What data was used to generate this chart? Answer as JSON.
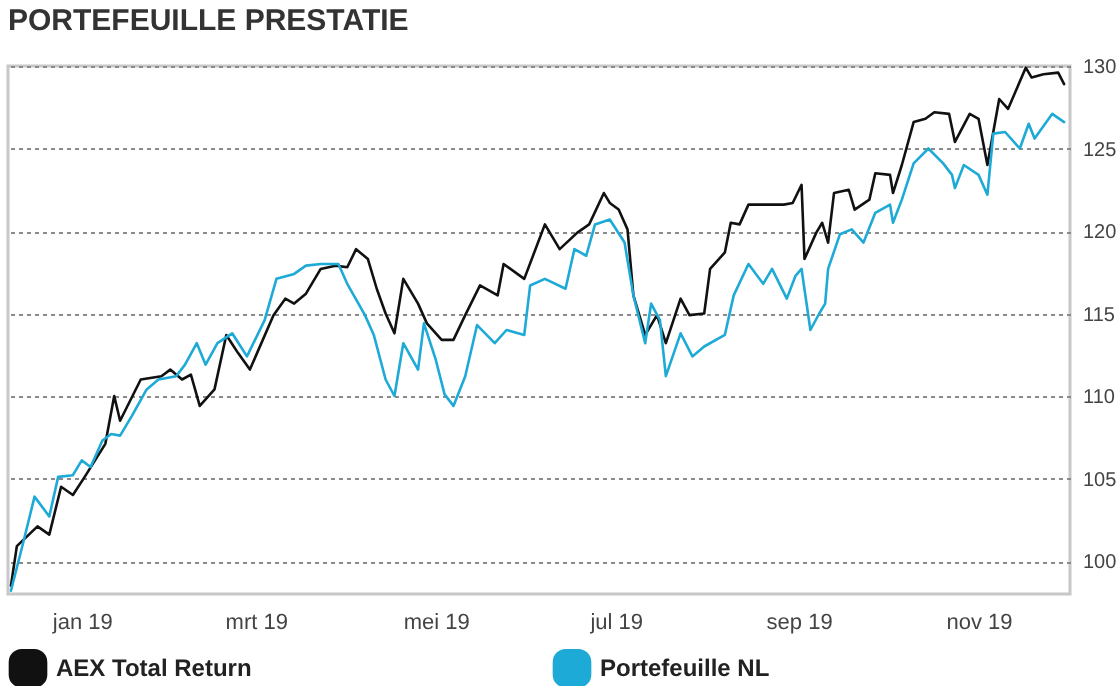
{
  "chart_data": {
    "type": "line",
    "title": "PORTEFEUILLE PRESTATIE",
    "xlim": [
      "2018-12-07",
      "2019-12-02"
    ],
    "ylim": [
      98,
      130
    ],
    "xticks": [
      {
        "value": "2019-01-01",
        "label": "jan 19"
      },
      {
        "value": "2019-03-01",
        "label": "mrt 19"
      },
      {
        "value": "2019-05-01",
        "label": "mei 19"
      },
      {
        "value": "2019-07-01",
        "label": "jul 19"
      },
      {
        "value": "2019-09-01",
        "label": "sep 19"
      },
      {
        "value": "2019-11-01",
        "label": "nov 19"
      }
    ],
    "yticks": [
      100,
      105,
      110,
      115,
      120,
      125,
      130
    ],
    "grid": "y",
    "legend": "bottom",
    "line_style": "solid",
    "marker": "none",
    "series": [
      {
        "name": "AEX Total Return",
        "color": "#111111",
        "x": [
          "2018-12-08",
          "2018-12-10",
          "2018-12-17",
          "2018-12-21",
          "2018-12-25",
          "2018-12-29",
          "2019-01-02",
          "2019-01-09",
          "2019-01-12",
          "2019-01-14",
          "2019-01-21",
          "2019-01-28",
          "2019-01-31",
          "2019-02-04",
          "2019-02-07",
          "2019-02-10",
          "2019-02-15",
          "2019-02-19",
          "2019-02-23",
          "2019-02-27",
          "2019-03-07",
          "2019-03-11",
          "2019-03-14",
          "2019-03-18",
          "2019-03-23",
          "2019-03-28",
          "2019-04-01",
          "2019-04-04",
          "2019-04-08",
          "2019-04-11",
          "2019-04-14",
          "2019-04-17",
          "2019-04-20",
          "2019-04-25",
          "2019-04-28",
          "2019-05-03",
          "2019-05-07",
          "2019-05-11",
          "2019-05-16",
          "2019-05-22",
          "2019-05-24",
          "2019-05-31",
          "2019-06-07",
          "2019-06-12",
          "2019-06-18",
          "2019-06-22",
          "2019-06-27",
          "2019-06-29",
          "2019-07-02",
          "2019-07-05",
          "2019-07-07",
          "2019-07-11",
          "2019-07-15",
          "2019-07-18",
          "2019-07-23",
          "2019-07-26",
          "2019-07-31",
          "2019-08-02",
          "2019-08-07",
          "2019-08-09",
          "2019-08-12",
          "2019-08-15",
          "2019-08-27",
          "2019-08-30",
          "2019-09-02",
          "2019-09-03",
          "2019-09-07",
          "2019-09-09",
          "2019-09-11",
          "2019-09-13",
          "2019-09-18",
          "2019-09-20",
          "2019-09-25",
          "2019-09-27",
          "2019-10-02",
          "2019-10-03",
          "2019-10-06",
          "2019-10-10",
          "2019-10-14",
          "2019-10-17",
          "2019-10-22",
          "2019-10-24",
          "2019-10-29",
          "2019-11-01",
          "2019-11-04",
          "2019-11-08",
          "2019-11-11",
          "2019-11-17",
          "2019-11-19",
          "2019-11-23",
          "2019-11-28",
          "2019-11-30"
        ],
        "values": [
          98.5,
          100.9,
          102.1,
          101.6,
          104.5,
          104,
          105.1,
          107.1,
          110,
          108.5,
          111,
          111.2,
          111.6,
          111,
          111.3,
          109.4,
          110.4,
          113.7,
          112.6,
          111.6,
          114.9,
          115.9,
          115.6,
          116.2,
          117.7,
          117.9,
          117.8,
          118.9,
          118.3,
          116.5,
          115,
          113.8,
          117.1,
          115.6,
          114.4,
          113.4,
          113.4,
          114.9,
          116.7,
          116.1,
          118,
          117.1,
          120.4,
          118.9,
          119.9,
          120.4,
          122.3,
          121.7,
          121.3,
          120.1,
          116.1,
          113.7,
          114.9,
          113.2,
          115.9,
          114.9,
          115,
          117.7,
          118.7,
          120.5,
          120.4,
          121.6,
          121.6,
          121.7,
          122.8,
          118.3,
          119.9,
          120.5,
          119.3,
          122.3,
          122.5,
          121.3,
          121.9,
          123.5,
          123.4,
          122.3,
          124,
          126.6,
          126.8,
          127.2,
          127.1,
          125.4,
          127.1,
          126.8,
          124,
          128,
          127.4,
          129.9,
          129.3,
          129.5,
          129.6,
          128.9
        ]
      },
      {
        "name": "Portefeuille NL",
        "color": "#1eaad6",
        "x": [
          "2018-12-08",
          "2018-12-12",
          "2018-12-16",
          "2018-12-21",
          "2018-12-24",
          "2018-12-29",
          "2019-01-01",
          "2019-01-04",
          "2019-01-08",
          "2019-01-11",
          "2019-01-14",
          "2019-01-18",
          "2019-01-23",
          "2019-01-27",
          "2019-02-02",
          "2019-02-05",
          "2019-02-09",
          "2019-02-12",
          "2019-02-16",
          "2019-02-21",
          "2019-02-26",
          "2019-03-04",
          "2019-03-08",
          "2019-03-14",
          "2019-03-18",
          "2019-03-23",
          "2019-03-29",
          "2019-04-01",
          "2019-04-07",
          "2019-04-10",
          "2019-04-14",
          "2019-04-17",
          "2019-04-20",
          "2019-04-25",
          "2019-04-27",
          "2019-05-01",
          "2019-05-04",
          "2019-05-07",
          "2019-05-11",
          "2019-05-15",
          "2019-05-21",
          "2019-05-25",
          "2019-05-31",
          "2019-06-02",
          "2019-06-07",
          "2019-06-14",
          "2019-06-17",
          "2019-06-21",
          "2019-06-24",
          "2019-06-29",
          "2019-07-04",
          "2019-07-07",
          "2019-07-11",
          "2019-07-13",
          "2019-07-16",
          "2019-07-18",
          "2019-07-23",
          "2019-07-27",
          "2019-07-31",
          "2019-08-07",
          "2019-08-10",
          "2019-08-15",
          "2019-08-20",
          "2019-08-23",
          "2019-08-28",
          "2019-08-31",
          "2019-09-02",
          "2019-09-05",
          "2019-09-08",
          "2019-09-10",
          "2019-09-11",
          "2019-09-15",
          "2019-09-19",
          "2019-09-23",
          "2019-09-27",
          "2019-10-02",
          "2019-10-03",
          "2019-10-06",
          "2019-10-10",
          "2019-10-15",
          "2019-10-20",
          "2019-10-23",
          "2019-10-24",
          "2019-10-27",
          "2019-11-01",
          "2019-11-04",
          "2019-11-06",
          "2019-11-10",
          "2019-11-15",
          "2019-11-18",
          "2019-11-20",
          "2019-11-26",
          "2019-11-30"
        ],
        "values": [
          98.2,
          101,
          103.9,
          102.7,
          105.1,
          105.2,
          106.1,
          105.7,
          107.3,
          107.7,
          107.6,
          108.8,
          110.4,
          111,
          111.2,
          111.9,
          113.2,
          111.9,
          113.2,
          113.8,
          112.4,
          114.6,
          117.1,
          117.4,
          117.9,
          118,
          118,
          116.8,
          114.9,
          113.7,
          111,
          110,
          113.2,
          111.6,
          114.4,
          112.2,
          110.1,
          109.4,
          111.2,
          114.3,
          113.2,
          114,
          113.7,
          116.7,
          117.1,
          116.5,
          118.9,
          118.5,
          120.4,
          120.7,
          119.3,
          116.1,
          113.2,
          115.6,
          114.6,
          111.2,
          113.8,
          112.4,
          113,
          113.7,
          116.1,
          118,
          116.8,
          117.7,
          115.9,
          117.3,
          117.7,
          114,
          115,
          115.6,
          117.7,
          119.8,
          120.1,
          119.3,
          121.1,
          121.6,
          120.5,
          121.9,
          124.1,
          125,
          124.1,
          123.4,
          122.6,
          124,
          123.4,
          122.2,
          125.9,
          126,
          125,
          126.5,
          125.6,
          127.1,
          126.6
        ]
      }
    ]
  }
}
